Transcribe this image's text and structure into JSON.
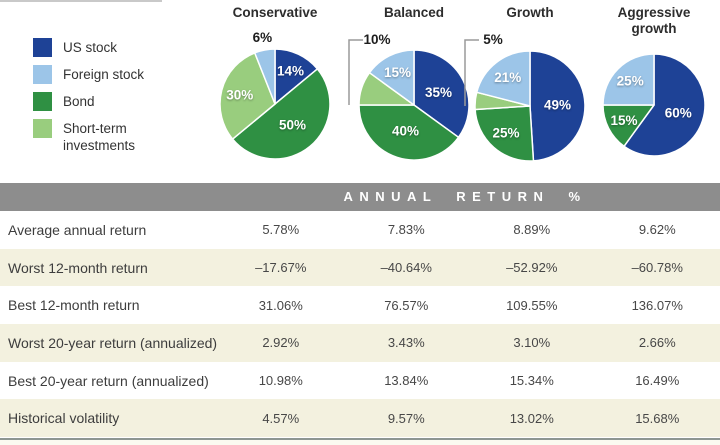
{
  "legend": {
    "items": [
      {
        "label": "US stock",
        "asset": "us_stock"
      },
      {
        "label": "Foreign stock",
        "asset": "foreign_stock"
      },
      {
        "label": "Bond",
        "asset": "bond"
      },
      {
        "label": "Short-term investments",
        "asset": "short_term"
      }
    ]
  },
  "colors": {
    "us_stock": "#1e4296",
    "foreign_stock": "#9cc5e8",
    "bond": "#2f9043",
    "short_term": "#99cd7e",
    "band_bg": "#8d8d8d",
    "band_text": "#ffffff",
    "row_alt_bg": "#f3f1df",
    "bracket": "#9a9a9a",
    "bottom_rule": "#8d9692"
  },
  "chart_data": [
    {
      "type": "pie",
      "title": "Conservative",
      "slices": [
        {
          "asset": "us_stock",
          "name": "US stock",
          "value": 14,
          "label": "14%",
          "label_placement": "inside"
        },
        {
          "asset": "bond",
          "name": "Bond",
          "value": 50,
          "label": "50%",
          "label_placement": "inside"
        },
        {
          "asset": "short_term",
          "name": "Short-term investments",
          "value": 30,
          "label": "30%",
          "label_placement": "inside"
        },
        {
          "asset": "foreign_stock",
          "name": "Foreign stock",
          "value": 6,
          "label": "6%",
          "label_placement": "outside",
          "callout": false
        }
      ]
    },
    {
      "type": "pie",
      "title": "Balanced",
      "slices": [
        {
          "asset": "us_stock",
          "name": "US stock",
          "value": 35,
          "label": "35%",
          "label_placement": "inside"
        },
        {
          "asset": "bond",
          "name": "Bond",
          "value": 40,
          "label": "40%",
          "label_placement": "inside"
        },
        {
          "asset": "short_term",
          "name": "Short-term investments",
          "value": 10,
          "label": "10%",
          "label_placement": "outside",
          "callout": true
        },
        {
          "asset": "foreign_stock",
          "name": "Foreign stock",
          "value": 15,
          "label": "15%",
          "label_placement": "inside"
        }
      ]
    },
    {
      "type": "pie",
      "title": "Growth",
      "slices": [
        {
          "asset": "us_stock",
          "name": "US stock",
          "value": 49,
          "label": "49%",
          "label_placement": "inside"
        },
        {
          "asset": "bond",
          "name": "Bond",
          "value": 25,
          "label": "25%",
          "label_placement": "inside"
        },
        {
          "asset": "short_term",
          "name": "Short-term investments",
          "value": 5,
          "label": "5%",
          "label_placement": "outside",
          "callout": true
        },
        {
          "asset": "foreign_stock",
          "name": "Foreign stock",
          "value": 21,
          "label": "21%",
          "label_placement": "inside"
        }
      ]
    },
    {
      "type": "pie",
      "title": "Aggressive growth",
      "slices": [
        {
          "asset": "us_stock",
          "name": "US stock",
          "value": 60,
          "label": "60%",
          "label_placement": "inside"
        },
        {
          "asset": "bond",
          "name": "Bond",
          "value": 15,
          "label": "15%",
          "label_placement": "inside"
        },
        {
          "asset": "foreign_stock",
          "name": "Foreign stock",
          "value": 25,
          "label": "25%",
          "label_placement": "inside"
        }
      ]
    },
    {
      "type": "table",
      "title": "ANNUAL RETURN %",
      "columns": [
        "Conservative",
        "Balanced",
        "Growth",
        "Aggressive growth"
      ],
      "rows": [
        {
          "label": "Average annual return",
          "values": [
            "5.78%",
            "7.83%",
            "8.89%",
            "9.62%"
          ]
        },
        {
          "label": "Worst 12-month return",
          "values": [
            "–17.67%",
            "–40.64%",
            "–52.92%",
            "–60.78%"
          ]
        },
        {
          "label": "Best 12-month return",
          "values": [
            "31.06%",
            "76.57%",
            "109.55%",
            "136.07%"
          ]
        },
        {
          "label": "Worst 20-year return (annualized)",
          "values": [
            "2.92%",
            "3.43%",
            "3.10%",
            "2.66%"
          ]
        },
        {
          "label": "Best 20-year return (annualized)",
          "values": [
            "10.98%",
            "13.84%",
            "15.34%",
            "16.49%"
          ]
        },
        {
          "label": "Historical volatility",
          "values": [
            "4.57%",
            "9.57%",
            "13.02%",
            "15.68%"
          ]
        }
      ]
    }
  ]
}
